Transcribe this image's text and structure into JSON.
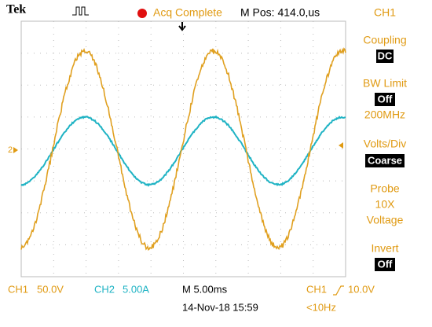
{
  "header": {
    "brand": "Tek",
    "status": "Acq Complete",
    "position": "M Pos: 414.0,us"
  },
  "menu": {
    "title": "CH1",
    "coupling": {
      "label": "Coupling",
      "value": "DC"
    },
    "bw_limit": {
      "label": "BW Limit",
      "value": "Off",
      "note": "200MHz"
    },
    "volts_div": {
      "label": "Volts/Div",
      "value": "Coarse"
    },
    "probe": {
      "label": "Probe",
      "value": "10X",
      "note": "Voltage"
    },
    "invert": {
      "label": "Invert",
      "value": "Off"
    }
  },
  "screen": {
    "ch2_marker": "2"
  },
  "footer": {
    "ch1": {
      "label": "CH1",
      "scale": "50.0V"
    },
    "ch2": {
      "label": "CH2",
      "scale": "5.00A"
    },
    "timebase": "M 5.00ms",
    "trigger": {
      "source": "CH1",
      "level": "10.0V"
    },
    "datetime": "14-Nov-18 15:59",
    "frequency": "<10Hz"
  }
}
